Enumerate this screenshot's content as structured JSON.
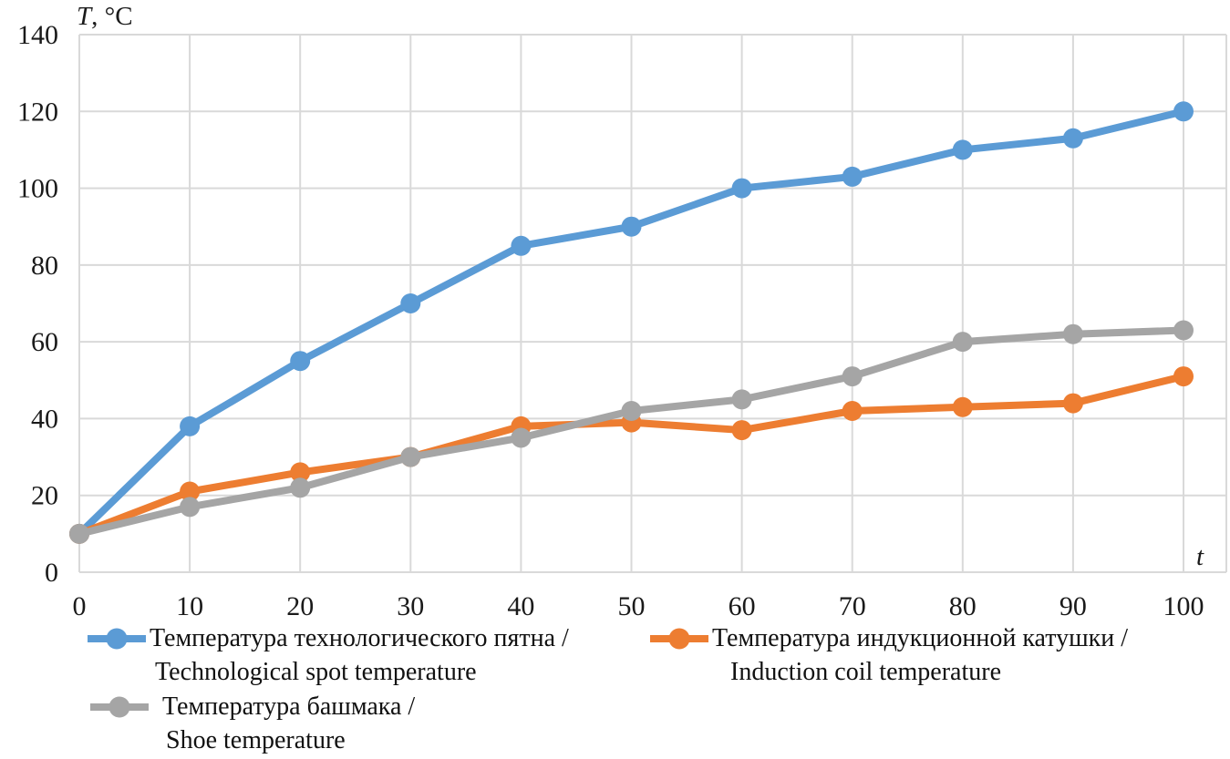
{
  "chart_data": {
    "type": "line",
    "title": "",
    "grid": "on",
    "legend_position": "bottom",
    "gridline_color": "#d9d9d9",
    "text_color": "#1a1a1a",
    "x_axis": {
      "title": "t",
      "min": 0,
      "max": 100,
      "ticks": [
        0,
        10,
        20,
        30,
        40,
        50,
        60,
        70,
        80,
        90,
        100
      ]
    },
    "y_axis": {
      "title_symbol": "T",
      "title_unit": ", °C",
      "min": 0,
      "max": 140,
      "ticks": [
        0,
        20,
        40,
        60,
        80,
        100,
        120,
        140
      ]
    },
    "x": [
      0,
      10,
      20,
      30,
      40,
      50,
      60,
      70,
      80,
      90,
      100
    ],
    "series": [
      {
        "name_ru": "Температура технологического пятна /",
        "name_en": "Technological spot temperature",
        "color": "#5b9bd5",
        "values": [
          10,
          38,
          55,
          70,
          85,
          90,
          100,
          103,
          110,
          113,
          120
        ]
      },
      {
        "name_ru": "Температура индукционной катушки /",
        "name_en": "Induction coil temperature",
        "color": "#ed7d31",
        "values": [
          10,
          21,
          26,
          30,
          38,
          39,
          37,
          42,
          43,
          44,
          51
        ]
      },
      {
        "name_ru": "Температура башмака /",
        "name_en": "Shoe temperature",
        "color": "#a5a5a5",
        "values": [
          10,
          17,
          22,
          30,
          35,
          42,
          45,
          51,
          60,
          62,
          63
        ]
      }
    ]
  }
}
